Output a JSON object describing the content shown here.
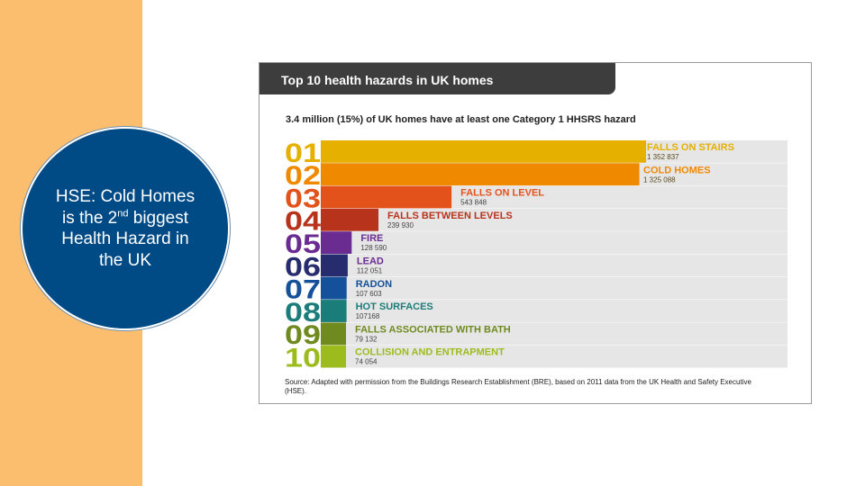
{
  "slide": {
    "circle_text_before": "HSE: Cold Homes is the 2",
    "circle_text_sup": "nd",
    "circle_text_after": " biggest Health Hazard in the UK"
  },
  "card": {
    "title": "Top 10 health hazards in UK homes",
    "subtitle": "3.4 million (15%) of UK homes have at least one Category 1 HHSRS hazard",
    "source": "Source: Adapted with permission from the Buildings Research Establishment (BRE), based on 2011 data from the UK Health and Safety Executive (HSE)."
  },
  "chart_data": {
    "type": "bar",
    "orientation": "horizontal",
    "ranks": [
      "01",
      "02",
      "03",
      "04",
      "05",
      "06",
      "07",
      "08",
      "09",
      "10"
    ],
    "categories": [
      "FALLS ON STAIRS",
      "COLD HOMES",
      "FALLS ON LEVEL",
      "FALLS BETWEEN LEVELS",
      "FIRE",
      "LEAD",
      "RADON",
      "HOT SURFACES",
      "FALLS ASSOCIATED WITH BATH",
      "COLLISION AND ENTRAPMENT"
    ],
    "value_labels": [
      "1 352 837",
      "1 325 088",
      "543 848",
      "239 930",
      "128 590",
      "112 051",
      "107 603",
      "107168",
      "79 132",
      "74 054"
    ],
    "values": [
      1352837,
      1325088,
      543848,
      239930,
      128590,
      112051,
      107603,
      107168,
      79132,
      74054
    ],
    "colors": [
      "#e6b000",
      "#ef8a00",
      "#e4521b",
      "#b8331c",
      "#6a2c90",
      "#262c6e",
      "#15509b",
      "#1b7d7a",
      "#6f8a1f",
      "#9cbc1e"
    ],
    "label_colors": [
      "#e6b000",
      "#ef8a00",
      "#e4521b",
      "#b8331c",
      "#6a2c90",
      "#6a2c90",
      "#15509b",
      "#1b7d7a",
      "#6f8a1f",
      "#9cbc1e"
    ],
    "row_background": "#e6e6e6"
  }
}
